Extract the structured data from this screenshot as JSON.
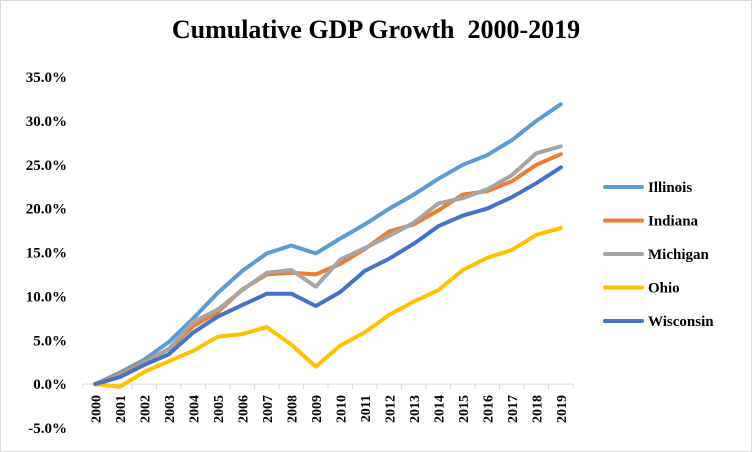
{
  "chart_data": {
    "type": "line",
    "title": "Cumulative GDP Growth  2000-2019",
    "xlabel": "",
    "ylabel": "",
    "x": [
      "2000",
      "2001",
      "2002",
      "2003",
      "2004",
      "2005",
      "2006",
      "2007",
      "2008",
      "2009",
      "2010",
      "2011",
      "2012",
      "2013",
      "2014",
      "2015",
      "2016",
      "2017",
      "2018",
      "2019"
    ],
    "ylim": [
      -0.05,
      0.35
    ],
    "yticks": [
      "-5.0%",
      "0.0%",
      "5.0%",
      "10.0%",
      "15.0%",
      "20.0%",
      "25.0%",
      "30.0%",
      "35.0%"
    ],
    "ytick_values": [
      -0.05,
      0.0,
      0.05,
      0.1,
      0.15,
      0.2,
      0.25,
      0.3,
      0.35
    ],
    "grid": false,
    "legend_position": "right",
    "series": [
      {
        "name": "Illinois",
        "color": "#5b9bd5",
        "values": [
          0.0,
          0.013,
          0.028,
          0.048,
          0.075,
          0.104,
          0.129,
          0.149,
          0.158,
          0.149,
          0.166,
          0.182,
          0.2,
          0.216,
          0.234,
          0.25,
          0.261,
          0.278,
          0.3,
          0.319
        ]
      },
      {
        "name": "Indiana",
        "color": "#ed7d31",
        "values": [
          0.0,
          0.011,
          0.025,
          0.04,
          0.066,
          0.082,
          0.108,
          0.125,
          0.127,
          0.125,
          0.137,
          0.154,
          0.174,
          0.182,
          0.198,
          0.216,
          0.22,
          0.231,
          0.25,
          0.262
        ]
      },
      {
        "name": "Michigan",
        "color": "#a5a5a5",
        "values": [
          0.0,
          0.009,
          0.024,
          0.04,
          0.071,
          0.085,
          0.107,
          0.127,
          0.13,
          0.111,
          0.142,
          0.155,
          0.169,
          0.184,
          0.206,
          0.212,
          0.222,
          0.238,
          0.263,
          0.271
        ]
      },
      {
        "name": "Ohio",
        "color": "#ffc000",
        "values": [
          0.0,
          -0.003,
          0.014,
          0.026,
          0.038,
          0.054,
          0.057,
          0.065,
          0.045,
          0.02,
          0.044,
          0.059,
          0.079,
          0.094,
          0.107,
          0.13,
          0.144,
          0.153,
          0.17,
          0.178
        ]
      },
      {
        "name": "Wisconsin",
        "color": "#4472c4",
        "values": [
          0.0,
          0.008,
          0.022,
          0.034,
          0.059,
          0.077,
          0.09,
          0.103,
          0.103,
          0.089,
          0.105,
          0.129,
          0.143,
          0.16,
          0.18,
          0.192,
          0.2,
          0.213,
          0.229,
          0.247
        ]
      }
    ]
  }
}
